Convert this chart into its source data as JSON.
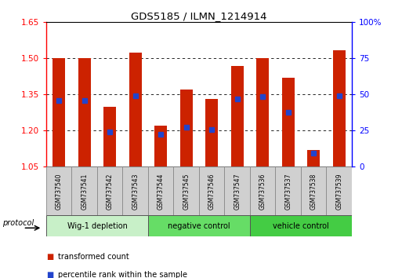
{
  "title": "GDS5185 / ILMN_1214914",
  "samples": [
    "GSM737540",
    "GSM737541",
    "GSM737542",
    "GSM737543",
    "GSM737544",
    "GSM737545",
    "GSM737546",
    "GSM737547",
    "GSM737536",
    "GSM737537",
    "GSM737538",
    "GSM737539"
  ],
  "bar_tops": [
    1.5,
    1.5,
    1.3,
    1.525,
    1.22,
    1.37,
    1.33,
    1.47,
    1.5,
    1.42,
    1.12,
    1.535
  ],
  "bar_bottom": 1.05,
  "blue_y": [
    1.325,
    1.325,
    1.195,
    1.345,
    1.185,
    1.215,
    1.205,
    1.33,
    1.34,
    1.275,
    1.107,
    1.345
  ],
  "ylim_left": [
    1.05,
    1.65
  ],
  "yticks_left": [
    1.05,
    1.2,
    1.35,
    1.5,
    1.65
  ],
  "ylim_right": [
    0,
    100
  ],
  "yticks_right": [
    0,
    25,
    50,
    75,
    100
  ],
  "y_right_labels": [
    "0",
    "25",
    "50",
    "75",
    "100%"
  ],
  "bar_color": "#cc2200",
  "blue_color": "#2244cc",
  "grid_yticks": [
    1.2,
    1.35,
    1.5
  ],
  "groups": [
    {
      "label": "Wig-1 depletion",
      "start": 0,
      "end": 3,
      "color": "#c8f0c8"
    },
    {
      "label": "negative control",
      "start": 4,
      "end": 7,
      "color": "#66dd66"
    },
    {
      "label": "vehicle control",
      "start": 8,
      "end": 11,
      "color": "#44cc44"
    }
  ],
  "protocol_label": "protocol",
  "legend_items": [
    {
      "color": "#cc2200",
      "label": "transformed count"
    },
    {
      "color": "#2244cc",
      "label": "percentile rank within the sample"
    }
  ],
  "bar_width": 0.5,
  "figsize": [
    5.13,
    3.54
  ],
  "dpi": 100
}
